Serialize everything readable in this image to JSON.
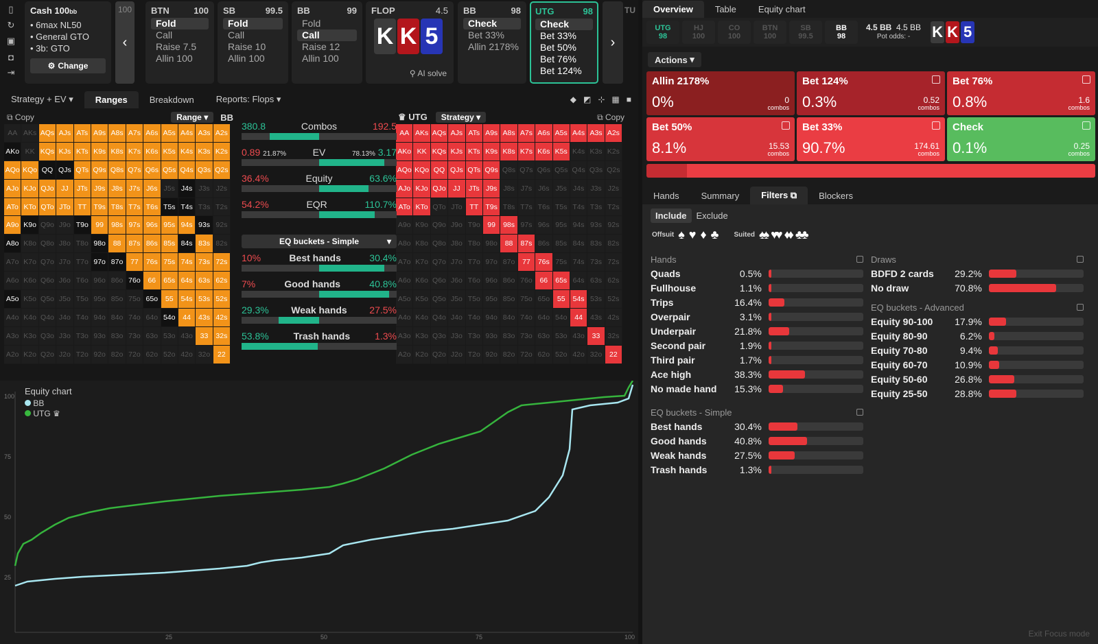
{
  "icons": [
    "bookmark-icon",
    "refresh-icon",
    "save-icon",
    "gamepad-icon",
    "export-icon"
  ],
  "game": {
    "title": "Cash",
    "stack": "100",
    "stack_unit": "bb",
    "lines": [
      "6max NL50",
      "General GTO",
      "3b: GTO"
    ],
    "change_label": "Change"
  },
  "partial_left": "100",
  "nav": {
    "prev": "‹",
    "next": "›"
  },
  "players": [
    {
      "pos": "BTN",
      "stack": "100",
      "options": [
        "Fold",
        "Call",
        "Raise 7.5",
        "Allin 100"
      ],
      "selected": 0
    },
    {
      "pos": "SB",
      "stack": "99.5",
      "options": [
        "Fold",
        "Call",
        "Raise 10",
        "Allin 100"
      ],
      "selected": 0
    },
    {
      "pos": "BB",
      "stack": "99",
      "options": [
        "Fold",
        "Call",
        "Raise 12",
        "Allin 100"
      ],
      "selected": 1
    }
  ],
  "flop": {
    "label": "FLOP",
    "pot": "4.5",
    "cards": [
      "K",
      "K",
      "5"
    ],
    "ai_label": "AI solve"
  },
  "bbcard": {
    "pos": "BB",
    "stack": "98",
    "options": [
      "Check",
      "Bet 33%",
      "Allin 2178%"
    ]
  },
  "utgcard": {
    "pos": "UTG",
    "stack": "98",
    "options": [
      "Check",
      "Bet 33%",
      "Bet 50%",
      "Bet 76%",
      "Bet 124%"
    ]
  },
  "partial_right": "TU",
  "subtabs": [
    "Strategy + EV",
    "Ranges",
    "Breakdown",
    "Reports: Flops"
  ],
  "left_range": {
    "copy": "Copy",
    "dropdown": "Range",
    "player": "BB"
  },
  "right_range": {
    "player": "UTG",
    "dropdown": "Strategy",
    "copy": "Copy"
  },
  "metrics": [
    {
      "l": "380.8",
      "c": "Combos",
      "r": "192.5",
      "fill": 0.5
    },
    {
      "l": "0.89",
      "lp": "21.87%",
      "c": "EV",
      "r": "3.17",
      "rp": "78.13%",
      "fill": 0.78
    },
    {
      "l": "36.4%",
      "c": "Equity",
      "r": "63.6%",
      "fill": 0.64
    },
    {
      "l": "54.2%",
      "c": "EQR",
      "r": "110.7%",
      "fill": 0.67
    }
  ],
  "eq_select": "EQ buckets - Simple",
  "buckets": [
    {
      "l": "10%",
      "c": "Best hands",
      "r": "30.4%",
      "fill": 0.3
    },
    {
      "l": "7%",
      "c": "Good hands",
      "r": "40.8%",
      "fill": 0.41
    },
    {
      "l": "29.3%",
      "c": "Weak hands",
      "r": "27.5%",
      "fill": 0.27
    },
    {
      "l": "53.8%",
      "c": "Trash hands",
      "r": "1.3%",
      "fill": 0.01
    }
  ],
  "equity_chart": {
    "title": "Equity chart",
    "legend": [
      "BB",
      "UTG"
    ],
    "yticks": [
      "100",
      "75",
      "50",
      "25"
    ],
    "xticks": [
      "25",
      "50",
      "75",
      "100"
    ]
  },
  "right_tabs": [
    "Overview",
    "Table",
    "Equity chart"
  ],
  "positions": [
    {
      "n": "UTG",
      "s": "98"
    },
    {
      "n": "HJ",
      "s": "100"
    },
    {
      "n": "CO",
      "s": "100"
    },
    {
      "n": "BTN",
      "s": "100"
    },
    {
      "n": "SB",
      "s": "99.5"
    },
    {
      "n": "BB",
      "s": "98"
    }
  ],
  "pot": {
    "a": "4.5 BB",
    "b": "4.5 BB",
    "odds_label": "Pot odds:",
    "odds": "-"
  },
  "actions_label": "Actions",
  "action_boxes": [
    {
      "t": "Allin 2178%",
      "p": "0%",
      "c": "0"
    },
    {
      "t": "Bet 124%",
      "p": "0.3%",
      "c": "0.52"
    },
    {
      "t": "Bet 76%",
      "p": "0.8%",
      "c": "1.6"
    },
    {
      "t": "Bet 50%",
      "p": "8.1%",
      "c": "15.53"
    },
    {
      "t": "Bet 33%",
      "p": "90.7%",
      "c": "174.61"
    },
    {
      "t": "Check",
      "p": "0.1%",
      "c": "0.25"
    }
  ],
  "combos_label": "combos",
  "lower_tabs": [
    "Hands",
    "Summary",
    "Filters",
    "Blockers"
  ],
  "filters": {
    "include": "Include",
    "exclude": "Exclude",
    "offsuit": "Offsuit",
    "suited": "Suited"
  },
  "hands_title": "Hands",
  "hands": [
    [
      "Quads",
      "0.5%",
      0.5
    ],
    [
      "Fullhouse",
      "1.1%",
      1.1
    ],
    [
      "Trips",
      "16.4%",
      16.4
    ],
    [
      "Overpair",
      "3.1%",
      3.1
    ],
    [
      "Underpair",
      "21.8%",
      21.8
    ],
    [
      "Second pair",
      "1.9%",
      1.9
    ],
    [
      "Third pair",
      "1.7%",
      1.7
    ],
    [
      "Ace high",
      "38.3%",
      38.3
    ],
    [
      "No made hand",
      "15.3%",
      15.3
    ]
  ],
  "eq_simple_title": "EQ buckets - Simple",
  "eq_simple": [
    [
      "Best hands",
      "30.4%",
      30.4
    ],
    [
      "Good hands",
      "40.8%",
      40.8
    ],
    [
      "Weak hands",
      "27.5%",
      27.5
    ],
    [
      "Trash hands",
      "1.3%",
      1.3
    ]
  ],
  "draws_title": "Draws",
  "draws": [
    [
      "BDFD 2 cards",
      "29.2%",
      29.2
    ],
    [
      "No draw",
      "70.8%",
      70.8
    ]
  ],
  "eq_adv_title": "EQ buckets - Advanced",
  "eq_adv": [
    [
      "Equity 90-100",
      "17.9%",
      17.9
    ],
    [
      "Equity 80-90",
      "6.2%",
      6.2
    ],
    [
      "Equity 70-80",
      "9.4%",
      9.4
    ],
    [
      "Equity 60-70",
      "10.9%",
      10.9
    ],
    [
      "Equity 50-60",
      "26.8%",
      26.8
    ],
    [
      "Equity 25-50",
      "28.8%",
      28.8
    ]
  ],
  "exit_label": "Exit Focus mode"
}
